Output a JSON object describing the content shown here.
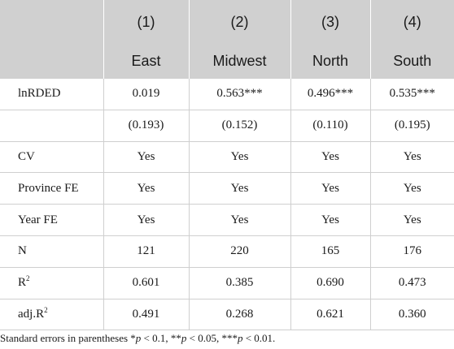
{
  "header": {
    "numbers": [
      "(1)",
      "(2)",
      "(3)",
      "(4)"
    ],
    "regions": [
      "East",
      "Midwest",
      "North",
      "South"
    ]
  },
  "rows": [
    {
      "label": "lnRDED",
      "values": [
        "0.019",
        "0.563***",
        "0.496***",
        "0.535***"
      ]
    },
    {
      "label": "",
      "values": [
        "(0.193)",
        "(0.152)",
        "(0.110)",
        "(0.195)"
      ]
    },
    {
      "label": "CV",
      "values": [
        "Yes",
        "Yes",
        "Yes",
        "Yes"
      ]
    },
    {
      "label": "Province FE",
      "values": [
        "Yes",
        "Yes",
        "Yes",
        "Yes"
      ]
    },
    {
      "label": "Year FE",
      "values": [
        "Yes",
        "Yes",
        "Yes",
        "Yes"
      ]
    },
    {
      "label": "N",
      "values": [
        "121",
        "220",
        "165",
        "176"
      ]
    },
    {
      "label_base": "R",
      "label_sup": "2",
      "values": [
        "0.601",
        "0.385",
        "0.690",
        "0.473"
      ]
    },
    {
      "label_base": "adj.R",
      "label_sup": "2",
      "values": [
        "0.491",
        "0.268",
        "0.621",
        "0.360"
      ]
    }
  ],
  "note": {
    "prefix": "Standard errors in parentheses *",
    "p1": "p",
    "mid1": " < 0.1, **",
    "p2": "p",
    "mid2": " < 0.05, ***",
    "p3": "p",
    "suffix": " < 0.01."
  }
}
